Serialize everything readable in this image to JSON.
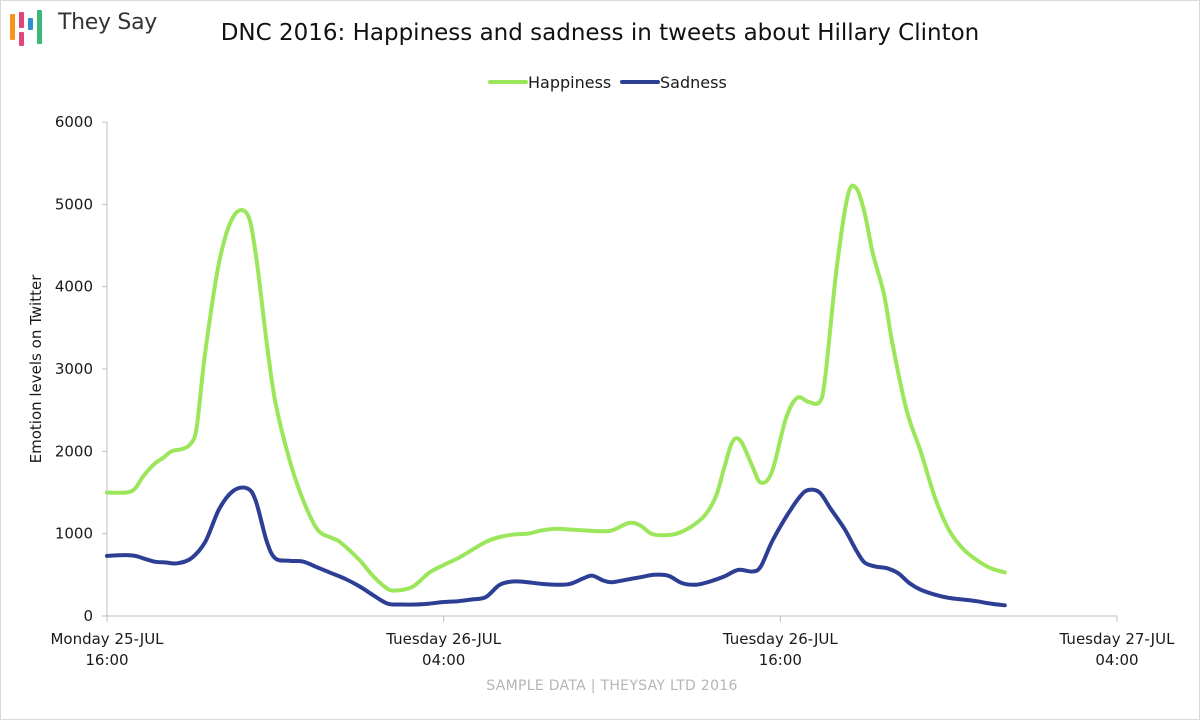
{
  "brand": {
    "name": "They Say",
    "colors": {
      "bar_orange": "#f7941d",
      "bar_pink": "#e0457b",
      "bar_blue": "#2e8fd0",
      "bar_green": "#3cb878"
    }
  },
  "footer": "SAMPLE DATA | THEYSAY LTD 2016",
  "chart_data": {
    "type": "line",
    "title": "DNC 2016: Happiness and sadness in tweets about Hillary Clinton",
    "xlabel": "",
    "ylabel": "Emotion levels on Twitter",
    "ylim": [
      0,
      6000
    ],
    "yticks": [
      0,
      1000,
      2000,
      3000,
      4000,
      5000,
      6000
    ],
    "x_ticks": [
      {
        "x": 0,
        "line1": "Monday 25-JUL",
        "line2": "16:00"
      },
      {
        "x": 12,
        "line1": "Tuesday 26-JUL",
        "line2": "04:00"
      },
      {
        "x": 24,
        "line1": "Tuesday 26-JUL",
        "line2": "16:00"
      },
      {
        "x": 36,
        "line1": "Tuesday 27-JUL",
        "line2": "04:00"
      }
    ],
    "xlim": [
      0,
      36
    ],
    "grid": false,
    "legend": "top-center",
    "series": [
      {
        "name": "Happiness",
        "color": "#9be65a",
        "points": [
          [
            0,
            1500
          ],
          [
            0.7,
            1500
          ],
          [
            1,
            1550
          ],
          [
            1.3,
            1700
          ],
          [
            1.7,
            1850
          ],
          [
            2,
            1920
          ],
          [
            2.3,
            2000
          ],
          [
            2.7,
            2030
          ],
          [
            3,
            2100
          ],
          [
            3.2,
            2300
          ],
          [
            3.5,
            3200
          ],
          [
            4,
            4300
          ],
          [
            4.5,
            4850
          ],
          [
            5,
            4880
          ],
          [
            5.3,
            4400
          ],
          [
            5.7,
            3300
          ],
          [
            6,
            2600
          ],
          [
            6.5,
            1900
          ],
          [
            7,
            1400
          ],
          [
            7.5,
            1050
          ],
          [
            8,
            950
          ],
          [
            8.3,
            900
          ],
          [
            9,
            680
          ],
          [
            9.5,
            480
          ],
          [
            10,
            330
          ],
          [
            10.3,
            310
          ],
          [
            10.7,
            330
          ],
          [
            11,
            380
          ],
          [
            11.5,
            530
          ],
          [
            12,
            620
          ],
          [
            12.5,
            700
          ],
          [
            13,
            800
          ],
          [
            13.5,
            900
          ],
          [
            14,
            960
          ],
          [
            14.5,
            990
          ],
          [
            15,
            1000
          ],
          [
            15.5,
            1040
          ],
          [
            16,
            1060
          ],
          [
            16.5,
            1050
          ],
          [
            17,
            1040
          ],
          [
            17.5,
            1030
          ],
          [
            18,
            1040
          ],
          [
            18.6,
            1130
          ],
          [
            19,
            1100
          ],
          [
            19.4,
            1000
          ],
          [
            19.8,
            980
          ],
          [
            20.3,
            1000
          ],
          [
            20.8,
            1080
          ],
          [
            21.3,
            1220
          ],
          [
            21.7,
            1450
          ],
          [
            22,
            1800
          ],
          [
            22.3,
            2120
          ],
          [
            22.6,
            2120
          ],
          [
            23,
            1820
          ],
          [
            23.3,
            1620
          ],
          [
            23.7,
            1750
          ],
          [
            24.2,
            2400
          ],
          [
            24.6,
            2650
          ],
          [
            25,
            2600
          ],
          [
            25.4,
            2600
          ],
          [
            25.6,
            2900
          ],
          [
            26,
            4200
          ],
          [
            26.4,
            5100
          ],
          [
            26.7,
            5200
          ],
          [
            27,
            4900
          ],
          [
            27.3,
            4400
          ],
          [
            27.7,
            3900
          ],
          [
            28,
            3300
          ],
          [
            28.5,
            2500
          ],
          [
            29,
            2000
          ],
          [
            29.5,
            1450
          ],
          [
            30,
            1050
          ],
          [
            30.5,
            820
          ],
          [
            31,
            680
          ],
          [
            31.5,
            580
          ],
          [
            32,
            530
          ]
        ]
      },
      {
        "name": "Sadness",
        "color": "#2d3f94",
        "points": [
          [
            0,
            730
          ],
          [
            0.6,
            740
          ],
          [
            1,
            730
          ],
          [
            1.3,
            700
          ],
          [
            1.7,
            660
          ],
          [
            2.1,
            650
          ],
          [
            2.5,
            640
          ],
          [
            3,
            700
          ],
          [
            3.5,
            900
          ],
          [
            4,
            1300
          ],
          [
            4.5,
            1520
          ],
          [
            5,
            1550
          ],
          [
            5.3,
            1400
          ],
          [
            5.7,
            900
          ],
          [
            6,
            700
          ],
          [
            6.5,
            670
          ],
          [
            7,
            660
          ],
          [
            7.5,
            590
          ],
          [
            8,
            520
          ],
          [
            8.5,
            450
          ],
          [
            9,
            360
          ],
          [
            9.5,
            250
          ],
          [
            10,
            150
          ],
          [
            10.5,
            140
          ],
          [
            11,
            140
          ],
          [
            11.5,
            150
          ],
          [
            12,
            170
          ],
          [
            12.5,
            180
          ],
          [
            13,
            200
          ],
          [
            13.5,
            230
          ],
          [
            14,
            380
          ],
          [
            14.5,
            420
          ],
          [
            15,
            410
          ],
          [
            15.5,
            390
          ],
          [
            16,
            380
          ],
          [
            16.5,
            390
          ],
          [
            17,
            460
          ],
          [
            17.3,
            490
          ],
          [
            17.7,
            430
          ],
          [
            18,
            410
          ],
          [
            18.5,
            440
          ],
          [
            19,
            470
          ],
          [
            19.5,
            500
          ],
          [
            20,
            490
          ],
          [
            20.5,
            400
          ],
          [
            21,
            380
          ],
          [
            21.5,
            420
          ],
          [
            22,
            480
          ],
          [
            22.5,
            560
          ],
          [
            23,
            540
          ],
          [
            23.3,
            600
          ],
          [
            23.7,
            900
          ],
          [
            24.2,
            1200
          ],
          [
            24.7,
            1450
          ],
          [
            25,
            1530
          ],
          [
            25.4,
            1500
          ],
          [
            25.8,
            1300
          ],
          [
            26.3,
            1050
          ],
          [
            26.7,
            800
          ],
          [
            27,
            650
          ],
          [
            27.4,
            600
          ],
          [
            27.8,
            580
          ],
          [
            28.2,
            520
          ],
          [
            28.6,
            400
          ],
          [
            29,
            320
          ],
          [
            29.5,
            260
          ],
          [
            30,
            220
          ],
          [
            30.5,
            200
          ],
          [
            31,
            180
          ],
          [
            31.5,
            150
          ],
          [
            32,
            130
          ]
        ]
      }
    ]
  }
}
